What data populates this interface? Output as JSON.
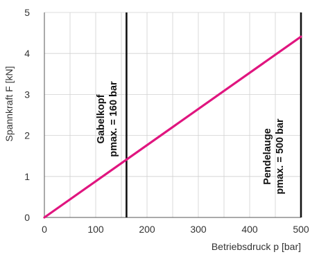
{
  "chart_data": {
    "type": "line",
    "xlabel": "Betriebsdruck p [bar]",
    "ylabel": "Spannkraft F [kN]",
    "xlim": [
      0,
      500
    ],
    "ylim": [
      0,
      5
    ],
    "x_ticks": [
      "0",
      "100",
      "200",
      "300",
      "400",
      "500"
    ],
    "y_ticks": [
      "0",
      "1",
      "2",
      "3",
      "4",
      "5"
    ],
    "grid": true,
    "series": [
      {
        "x": [
          0,
          500
        ],
        "y": [
          0,
          4.41
        ],
        "color": "#e0157f"
      }
    ],
    "vertical_lines": [
      {
        "x": 160,
        "label_line1": "Gabelkopf",
        "label_line2": "pmax. = 160 bar"
      },
      {
        "x": 500,
        "label_line1": "Pendelauge",
        "label_line2": "pmax. = 500 bar"
      }
    ]
  }
}
